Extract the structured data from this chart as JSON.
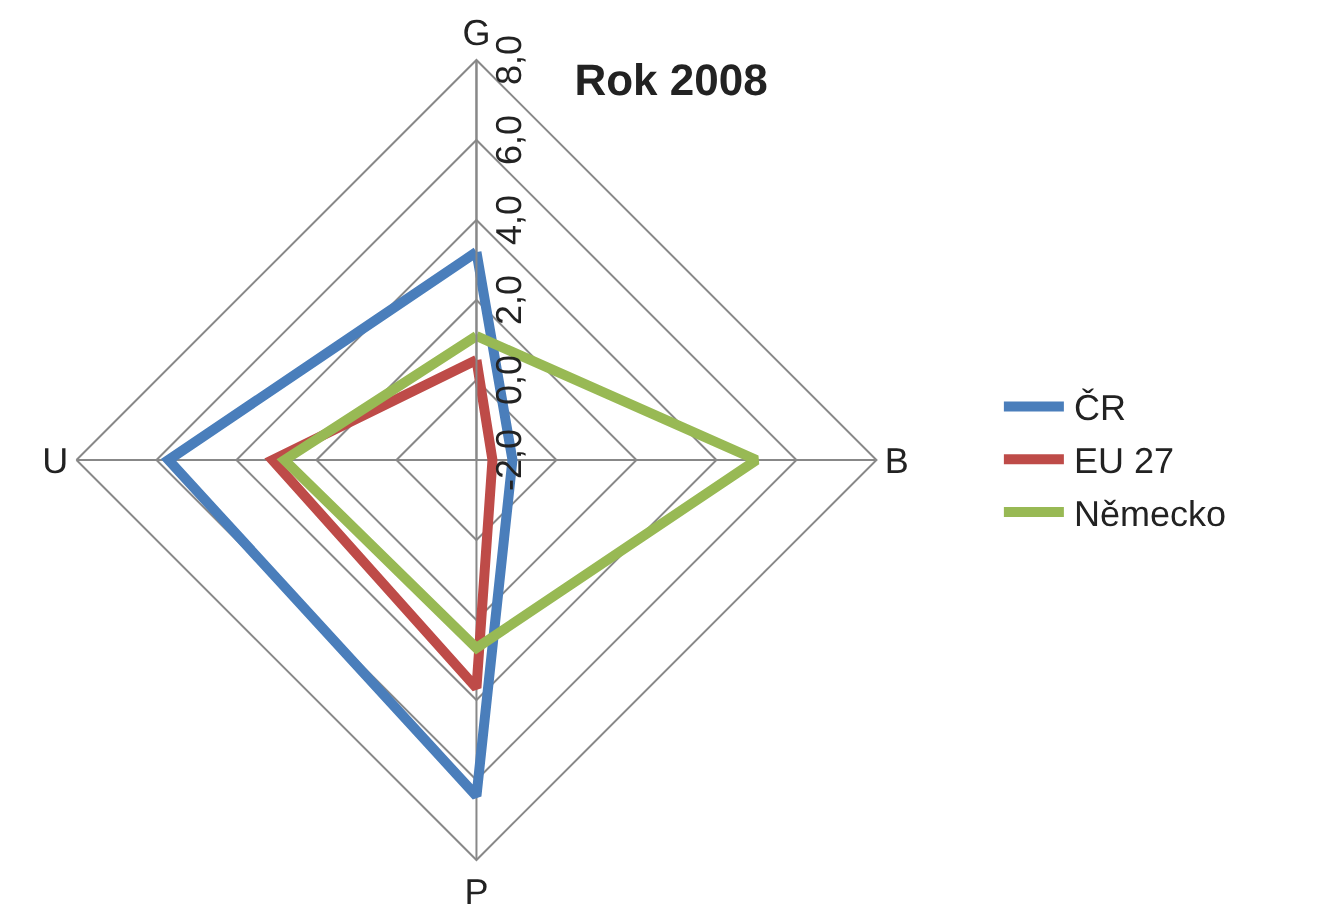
{
  "chart_data": {
    "type": "radar",
    "title": "Rok 2008",
    "categories": [
      "G",
      "B",
      "P",
      "U"
    ],
    "series": [
      {
        "name": "ČR",
        "color": "#4a7ebb",
        "values": [
          3.2,
          -1.1,
          6.4,
          5.7
        ]
      },
      {
        "name": "EU 27",
        "color": "#be4b48",
        "values": [
          0.5,
          -1.6,
          3.7,
          3.1
        ]
      },
      {
        "name": "Německo",
        "color": "#98b954",
        "values": [
          1.1,
          5.0,
          2.7,
          2.8
        ]
      }
    ],
    "ylim": [
      -2,
      8
    ],
    "yticks": [
      {
        "value": -2,
        "label": "-2,0"
      },
      {
        "value": 0,
        "label": "0,0"
      },
      {
        "value": 2,
        "label": "2,0"
      },
      {
        "value": 4,
        "label": "4,0"
      },
      {
        "value": 6,
        "label": "6,0"
      },
      {
        "value": 8,
        "label": "8,0"
      }
    ],
    "legend": "right",
    "marker": "none"
  }
}
